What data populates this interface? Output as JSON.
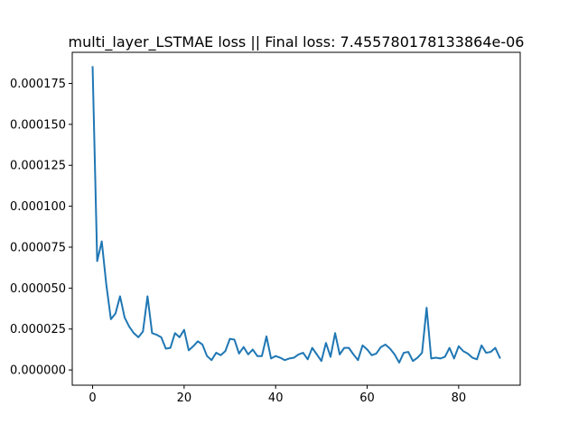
{
  "chart_data": {
    "type": "line",
    "title": "multi_layer_LSTMAE loss || Final loss: 7.455780178133864e-06",
    "xlabel": "",
    "ylabel": "",
    "xlim": [
      -4.45,
      93.45
    ],
    "ylim": [
      -9.3e-06,
      0.000194
    ],
    "x_ticks": [
      0,
      20,
      40,
      60,
      80
    ],
    "x_tick_labels": [
      "0",
      "20",
      "40",
      "60",
      "80"
    ],
    "y_ticks": [
      0,
      2.5e-05,
      5e-05,
      7.5e-05,
      0.0001,
      0.000125,
      0.00015,
      0.000175
    ],
    "y_tick_labels": [
      "0.000000",
      "0.000025",
      "0.000050",
      "0.000075",
      "0.000100",
      "0.000125",
      "0.000150",
      "0.000175"
    ],
    "grid": false,
    "series": [
      {
        "color": "#1f77b4",
        "x": [
          0,
          1,
          2,
          3,
          4,
          5,
          6,
          7,
          8,
          9,
          10,
          11,
          12,
          13,
          14,
          15,
          16,
          17,
          18,
          19,
          20,
          21,
          22,
          23,
          24,
          25,
          26,
          27,
          28,
          29,
          30,
          31,
          32,
          33,
          34,
          35,
          36,
          37,
          38,
          39,
          40,
          41,
          42,
          43,
          44,
          45,
          46,
          47,
          48,
          49,
          50,
          51,
          52,
          53,
          54,
          55,
          56,
          57,
          58,
          59,
          60,
          61,
          62,
          63,
          64,
          65,
          66,
          67,
          68,
          69,
          70,
          71,
          72,
          73,
          74,
          75,
          76,
          77,
          78,
          79,
          80,
          81,
          82,
          83,
          84,
          85,
          86,
          87,
          88,
          89
        ],
        "values": [
          0.000185,
          6.65e-05,
          7.85e-05,
          5.2e-05,
          3.1e-05,
          3.45e-05,
          4.5e-05,
          3.2e-05,
          2.65e-05,
          2.25e-05,
          2e-05,
          2.35e-05,
          4.5e-05,
          2.25e-05,
          2.15e-05,
          2e-05,
          1.3e-05,
          1.35e-05,
          2.25e-05,
          2e-05,
          2.45e-05,
          1.2e-05,
          1.45e-05,
          1.75e-05,
          1.55e-05,
          8.5e-06,
          6e-06,
          1.05e-05,
          9e-06,
          1.15e-05,
          1.9e-05,
          1.85e-05,
          1e-05,
          1.4e-05,
          9.5e-06,
          1.25e-05,
          8.5e-06,
          8.5e-06,
          2.05e-05,
          7e-06,
          8.5e-06,
          7.5e-06,
          6e-06,
          7e-06,
          7.5e-06,
          9.5e-06,
          1.05e-05,
          6.5e-06,
          1.35e-05,
          9.5e-06,
          5.5e-06,
          1.65e-05,
          8e-06,
          2.25e-05,
          9.5e-06,
          1.35e-05,
          1.35e-05,
          9.5e-06,
          6e-06,
          1.5e-05,
          1.25e-05,
          9e-06,
          1e-05,
          1.4e-05,
          1.55e-05,
          1.3e-05,
          9.5e-06,
          4.5e-06,
          1.05e-05,
          1.1e-05,
          5.5e-06,
          7.5e-06,
          1.05e-05,
          3.8e-05,
          7e-06,
          7.5e-06,
          7e-06,
          8e-06,
          1.35e-05,
          7e-06,
          1.45e-05,
          1.15e-05,
          1e-05,
          7.5e-06,
          6.5e-06,
          1.5e-05,
          1.05e-05,
          1.1e-05,
          1.35e-05,
          7.5e-06
        ]
      }
    ]
  }
}
